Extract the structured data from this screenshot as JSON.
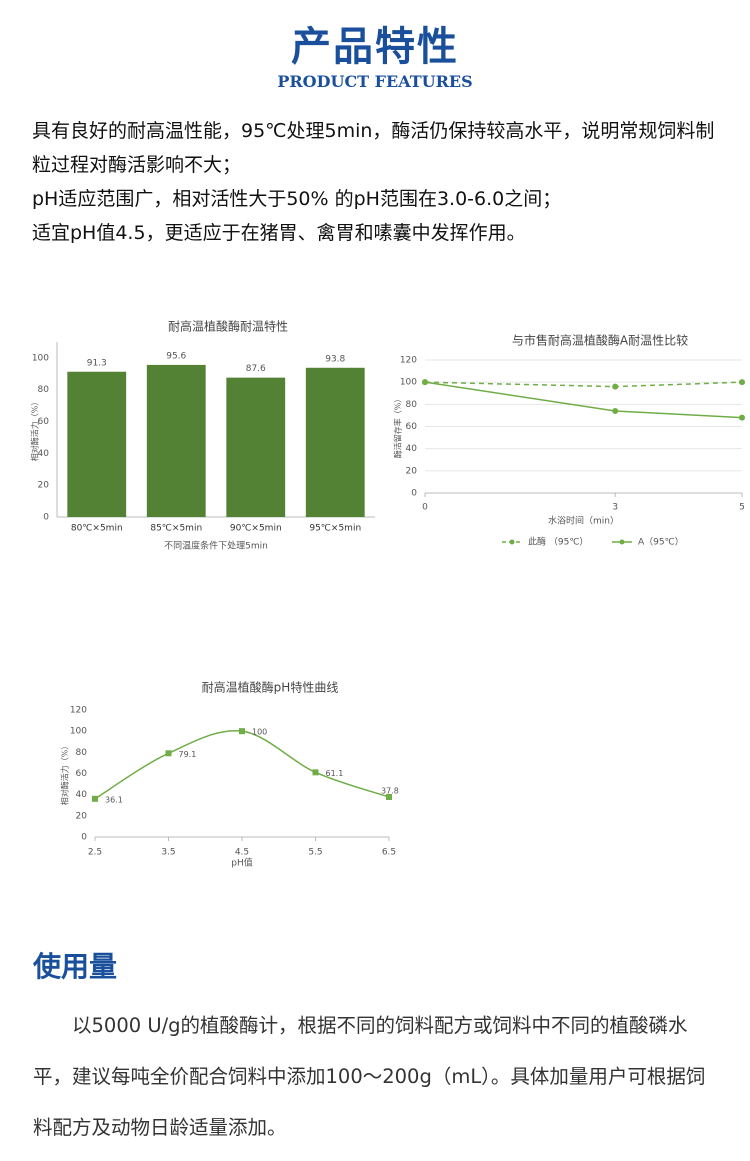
{
  "header": {
    "title": "产品特性",
    "subtitle": "PRODUCT FEATURES"
  },
  "features": [
    "具有良好的耐高温性能，95℃处理5min，酶活仍保持较高水平，说明常规饲料制粒过程对酶活影响不大；",
    "pH适应范围广，相对活性大于50% 的pH范围在3.0-6.0之间；",
    "适宜pH值4.5，更适应于在猪胃、禽胃和嗉囊中发挥作用。"
  ],
  "chart_data": [
    {
      "type": "bar",
      "title": "耐高温植酸酶耐温特性",
      "x_label": "不同温度条件下处理5min",
      "y_label": "相对酶活力（%）",
      "categories": [
        "80℃×5min",
        "85℃×5min",
        "90℃×5min",
        "95℃×5min"
      ],
      "values": [
        91.3,
        95.6,
        87.6,
        93.8
      ],
      "color": "#548235",
      "ylim": [
        0,
        110
      ],
      "yticks": [
        0,
        20,
        40,
        60,
        80,
        100
      ],
      "grid": false
    },
    {
      "type": "line",
      "title": "与市售耐高温植酸酶A耐温性比较",
      "x_label": "水浴时间（min）",
      "y_label": "酶活留存率（%）",
      "x": [
        0,
        3,
        5
      ],
      "xlim": [
        0,
        5
      ],
      "xticks": [
        0,
        3,
        5
      ],
      "ylim": [
        0,
        120
      ],
      "yticks": [
        0,
        20,
        40,
        60,
        80,
        100,
        120
      ],
      "grid": true,
      "legend": "bottom",
      "series": [
        {
          "name": "此酶 （95℃）",
          "color": "#70ad47",
          "dashed": true,
          "values": [
            100,
            96,
            100
          ]
        },
        {
          "name": "A（95℃）",
          "color": "#70ad47",
          "dashed": false,
          "values": [
            100,
            74,
            68
          ]
        }
      ]
    },
    {
      "type": "line",
      "title": "耐高温植酸酶pH特性曲线",
      "x_label": "pH值",
      "y_label": "相对酶活力（%）",
      "x": [
        2.5,
        3.5,
        4.5,
        5.5,
        6.5
      ],
      "xlim": [
        2.5,
        6.5
      ],
      "xticks": [
        2.5,
        3.5,
        4.5,
        5.5,
        6.5
      ],
      "ylim": [
        0,
        120
      ],
      "yticks": [
        0,
        20,
        40,
        60,
        80,
        100,
        120
      ],
      "grid": false,
      "smooth": true,
      "data_labels": true,
      "series": [
        {
          "color": "#70ad47",
          "dashed": false,
          "values": [
            36.1,
            79.1,
            100,
            61.1,
            37.8
          ]
        }
      ]
    }
  ],
  "usage": {
    "title": "使用量",
    "text": "以5000 U/g的植酸酶计，根据不同的饲料配方或饲料中不同的植酸磷水平，建议每吨全价配合饲料中添加100～200g（mL）。具体加量用户可根据饲料配方及动物日龄适量添加。"
  }
}
